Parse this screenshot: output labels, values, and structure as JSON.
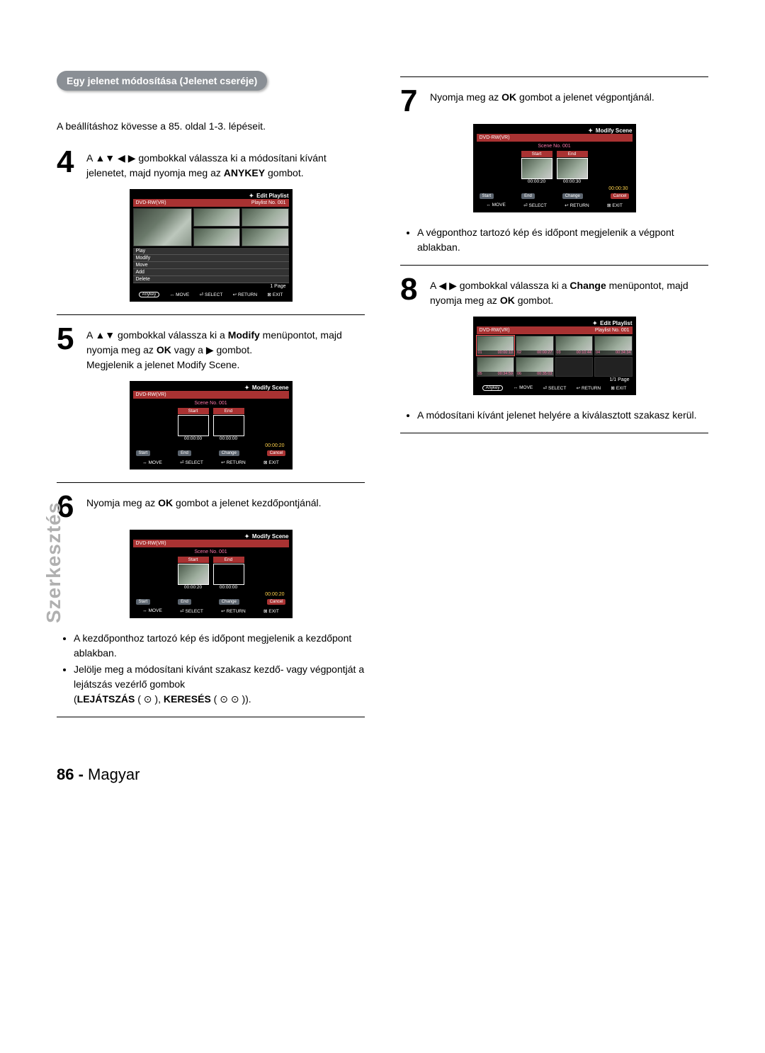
{
  "sectionTitle": "Egy jelenet módosítása (Jelenet cseréje)",
  "intro": "A beállításhoz kövesse a 85. oldal 1-3. lépéseit.",
  "steps": {
    "s4": {
      "num": "4",
      "text_pre": "A ▲▼ ◀ ▶ gombokkal válassza ki a módosítani kívánt jelenetet, majd nyomja meg az ",
      "key": "ANYKEY",
      "text_post": " gombot."
    },
    "s5": {
      "num": "5",
      "text_pre": "A ▲▼ gombokkal válassza ki a ",
      "key": "Modify",
      "text_mid": " menüpontot, majd nyomja meg az ",
      "key2": "OK",
      "text_post": " vagy a ▶ gombot.",
      "line2": "Megjelenik a jelenet Modify Scene."
    },
    "s6": {
      "num": "6",
      "text_pre": "Nyomja meg az ",
      "key": "OK",
      "text_post": " gombot a jelenet kezdőpontjánál."
    },
    "s7": {
      "num": "7",
      "text_pre": "Nyomja meg az ",
      "key": "OK",
      "text_post": " gombot a jelenet végpontjánál."
    },
    "s8": {
      "num": "8",
      "text_pre": "A ◀ ▶ gombokkal válassza ki a ",
      "key": "Change",
      "text_mid": " menüpontot, majd nyomja meg az ",
      "key2": "OK",
      "text_post": " gombot."
    }
  },
  "bullets": {
    "b6a": "A kezdőponthoz tartozó kép és időpont megjelenik a kezdőpont ablakban.",
    "b6b": "Jelölje meg a módosítani kívánt szakasz kezdő- vagy végpontját a lejátszás vezérlő gombok",
    "b6c_pre": "(",
    "b6c_play": "LEJÁTSZÁS",
    "b6c_mid": " ( ⊙ ), ",
    "b6c_search": "KERESÉS",
    "b6c_post": " ( ⊙ ⊙ )).",
    "b7": "A végponthoz tartozó kép és időpont megjelenik a végpont ablakban.",
    "b8": "A módosítani kívánt jelenet helyére a kiválasztott szakasz kerül."
  },
  "osd": {
    "editPlaylist": "Edit Playlist",
    "modifyScene": "Modify Scene",
    "dvd": "DVD-RW(VR)",
    "plno": "Playlist No. 001",
    "sceneNo": "Scene No. 001",
    "menu": {
      "play": "Play",
      "modify": "Modify",
      "move": "Move",
      "add": "Add",
      "delete": "Delete"
    },
    "page": "1 Page",
    "page11": "1/1 Page",
    "startLbl": "Start",
    "endLbl": "End",
    "change": "Change",
    "cancel": "Cancel",
    "t0": "00:00:00",
    "t20": "00:00:20",
    "t30": "00:00:30",
    "foot": {
      "anykey": "Anykey",
      "move": "MOVE",
      "select": "SELECT",
      "ret": "RETURN",
      "exit": "EXIT"
    },
    "thumbTimes": [
      "00:00:10",
      "00:00:27",
      "00:10:44",
      "00:34:34",
      "00:34:59",
      "00:35:03"
    ],
    "thumbIdx": [
      "01",
      "02",
      "03",
      "04",
      "05",
      "06"
    ]
  },
  "sideLabel": "Szerkesztés",
  "footer": {
    "page": "86 -",
    "lang": "Magyar"
  },
  "colors": {
    "pillBg": "#8a8f95",
    "headerBg": "#a93232",
    "timeColor": "#ffd24a",
    "sideGray": "#b0b0b0"
  }
}
